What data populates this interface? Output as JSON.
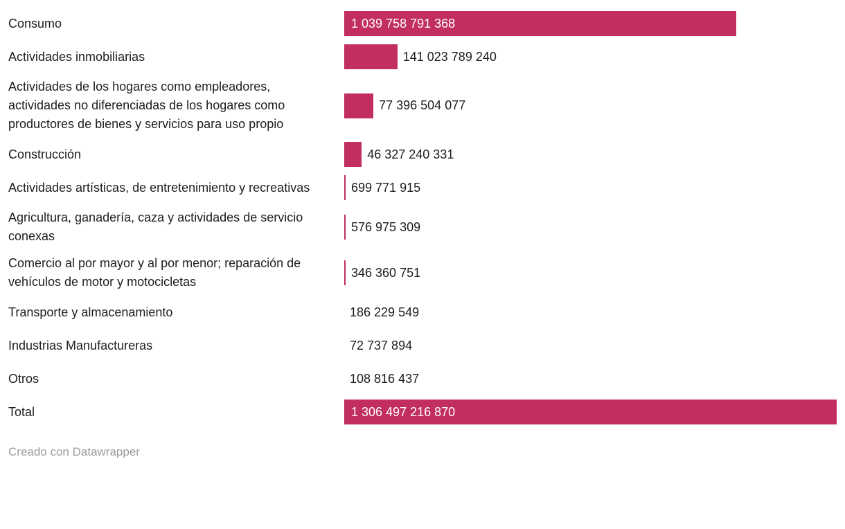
{
  "chart_data": {
    "type": "bar",
    "orientation": "horizontal",
    "title": "",
    "xlabel": "",
    "ylabel": "",
    "legend": "none",
    "grid": false,
    "xlim": [
      0,
      1306497216870
    ],
    "max_value": 1306497216870,
    "bar_color": "#c22e5e",
    "value_text_color": "#1d1d1d",
    "value_inside_text_color": "#ffffff",
    "rows": [
      {
        "label": "Consumo",
        "value": 1039758791368,
        "display": "1 039 758 791 368",
        "value_inside": true
      },
      {
        "label": "Actividades inmobiliarias",
        "value": 141023789240,
        "display": "141 023 789 240",
        "value_inside": false
      },
      {
        "label": "Actividades de los hogares como empleadores, actividades no diferenciadas de los hogares como productores de bienes y servicios para uso propio",
        "value": 77396504077,
        "display": "77 396 504 077",
        "value_inside": false
      },
      {
        "label": "Construcción",
        "value": 46327240331,
        "display": "46 327 240 331",
        "value_inside": false
      },
      {
        "label": "Actividades artísticas, de entretenimiento y recreativas",
        "value": 699771915,
        "display": "699 771 915",
        "value_inside": false
      },
      {
        "label": "Agricultura, ganadería, caza y actividades de servicio conexas",
        "value": 576975309,
        "display": "576 975 309",
        "value_inside": false
      },
      {
        "label": "Comercio al por mayor y al por menor; reparación de vehículos de motor y motocicletas",
        "value": 346360751,
        "display": "346 360 751",
        "value_inside": false
      },
      {
        "label": "Transporte y almacenamiento",
        "value": 186229549,
        "display": "186 229 549",
        "value_inside": false
      },
      {
        "label": "Industrias Manufactureras",
        "value": 72737894,
        "display": "72 737 894",
        "value_inside": false
      },
      {
        "label": "Otros",
        "value": 108816437,
        "display": "108 816 437",
        "value_inside": false
      },
      {
        "label": "Total",
        "value": 1306497216870,
        "display": "1 306 497 216 870",
        "value_inside": true
      }
    ]
  },
  "footer": {
    "credit": "Creado con Datawrapper"
  }
}
